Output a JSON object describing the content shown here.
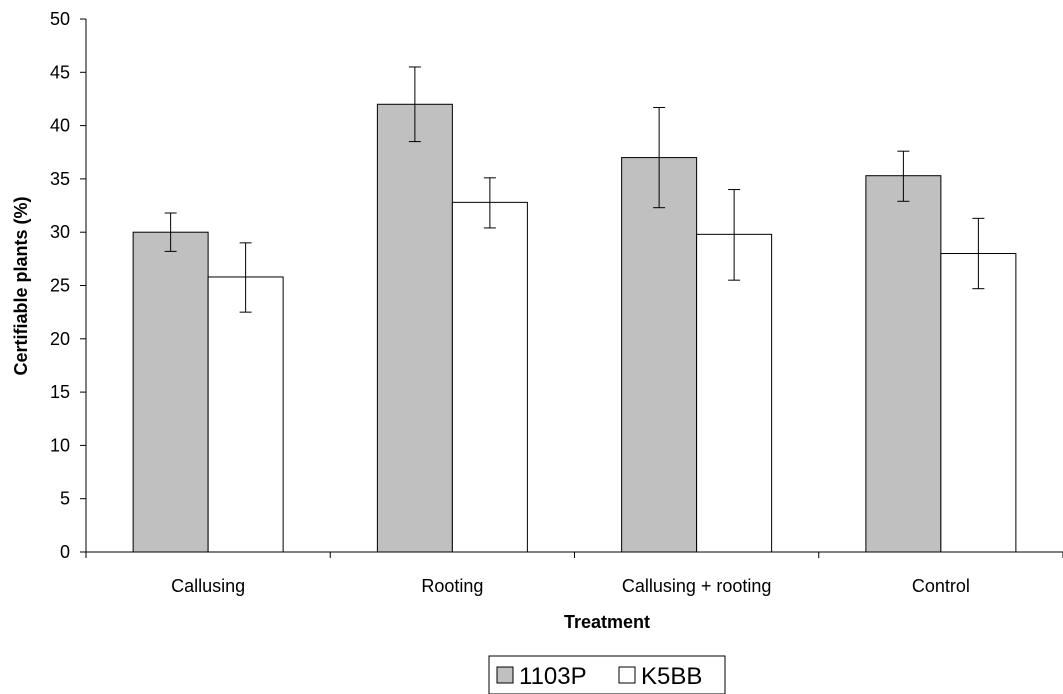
{
  "chart_data": {
    "type": "bar",
    "categories": [
      "Callusing",
      "Rooting",
      "Callusing + rooting",
      "Control"
    ],
    "series": [
      {
        "name": "1103P",
        "values": [
          30,
          42,
          37,
          35.3
        ],
        "error_low": [
          28.2,
          38.5,
          32.3,
          32.9
        ],
        "error_high": [
          31.8,
          45.5,
          41.7,
          37.6
        ],
        "color": "#c0c0c0"
      },
      {
        "name": "K5BB",
        "values": [
          25.8,
          32.8,
          29.8,
          28
        ],
        "error_low": [
          22.5,
          30.4,
          25.5,
          24.7
        ],
        "error_high": [
          29.0,
          35.1,
          34.0,
          31.3
        ],
        "color": "#ffffff"
      }
    ],
    "xlabel": "Treatment",
    "ylabel": "Certifiable plants (%)",
    "ylim": [
      0,
      50
    ],
    "yticks": [
      0,
      5,
      10,
      15,
      20,
      25,
      30,
      35,
      40,
      45,
      50
    ],
    "grid": false,
    "legend_position": "bottom-center"
  }
}
